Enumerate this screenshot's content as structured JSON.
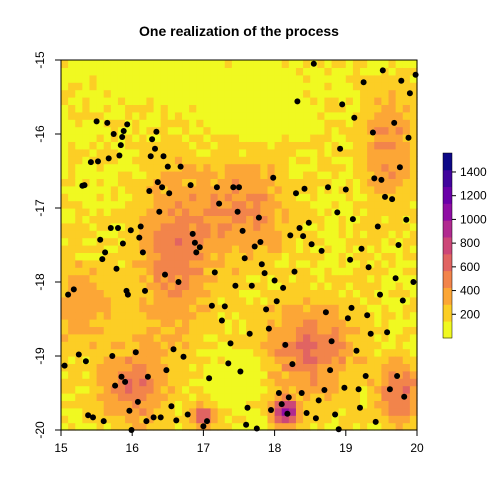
{
  "chart_data": {
    "type": "heatmap",
    "title": "One realization of the process",
    "xlabel": "",
    "ylabel": "",
    "xlim": [
      15,
      20
    ],
    "ylim": [
      -20,
      -15
    ],
    "grid_cells": [
      50,
      50
    ],
    "x_ticks": [
      {
        "value": 15,
        "label": "15"
      },
      {
        "value": 16,
        "label": "16"
      },
      {
        "value": 17,
        "label": "17"
      },
      {
        "value": 18,
        "label": "18"
      },
      {
        "value": 19,
        "label": "19"
      },
      {
        "value": 20,
        "label": "20"
      }
    ],
    "y_ticks": [
      {
        "value": -15,
        "label": "-15"
      },
      {
        "value": -16,
        "label": "-16"
      },
      {
        "value": -17,
        "label": "-17"
      },
      {
        "value": -18,
        "label": "-18"
      },
      {
        "value": -19,
        "label": "-19"
      },
      {
        "value": -20,
        "label": "-20"
      }
    ],
    "legend": {
      "placement": "right",
      "range": [
        0,
        1560
      ],
      "ticks": [
        {
          "value": 200,
          "label": "200"
        },
        {
          "value": 400,
          "label": "400"
        },
        {
          "value": 600,
          "label": "600"
        },
        {
          "value": 800,
          "label": "800"
        },
        {
          "value": 1000,
          "label": "1000"
        },
        {
          "value": 1200,
          "label": "1200"
        },
        {
          "value": 1400,
          "label": "1400"
        }
      ],
      "colors": [
        "#f0f921",
        "#fcce25",
        "#fca636",
        "#f2844b",
        "#e16462",
        "#cc4778",
        "#b12a90",
        "#8f0da4",
        "#6a00a8",
        "#41049d",
        "#0d0887"
      ]
    },
    "point_color": "#000000",
    "points": [
      [
        15.05,
        -19.13
      ],
      [
        15.1,
        -18.17
      ],
      [
        15.18,
        -18.1
      ],
      [
        15.25,
        -18.98
      ],
      [
        15.3,
        -16.7
      ],
      [
        15.33,
        -16.69
      ],
      [
        15.35,
        -19.07
      ],
      [
        15.38,
        -19.8
      ],
      [
        15.42,
        -16.38
      ],
      [
        15.45,
        -19.83
      ],
      [
        15.5,
        -15.83
      ],
      [
        15.52,
        -16.37
      ],
      [
        15.55,
        -17.43
      ],
      [
        15.58,
        -17.69
      ],
      [
        15.6,
        -19.88
      ],
      [
        15.62,
        -17.6
      ],
      [
        15.65,
        -15.85
      ],
      [
        15.67,
        -16.33
      ],
      [
        15.7,
        -17.27
      ],
      [
        15.72,
        -19.0
      ],
      [
        15.74,
        -16.0
      ],
      [
        15.76,
        -19.4
      ],
      [
        15.78,
        -17.82
      ],
      [
        15.8,
        -17.27
      ],
      [
        15.82,
        -16.29
      ],
      [
        15.84,
        -16.15
      ],
      [
        15.85,
        -19.28
      ],
      [
        15.86,
        -16.04
      ],
      [
        15.87,
        -17.48
      ],
      [
        15.88,
        -15.96
      ],
      [
        15.9,
        -19.35
      ],
      [
        15.92,
        -18.12
      ],
      [
        15.93,
        -15.87
      ],
      [
        15.94,
        -18.17
      ],
      [
        15.96,
        -19.74
      ],
      [
        15.98,
        -17.3
      ],
      [
        15.99,
        -20.0
      ],
      [
        16.05,
        -18.95
      ],
      [
        16.08,
        -19.62
      ],
      [
        16.1,
        -17.4
      ],
      [
        16.12,
        -17.25
      ],
      [
        16.15,
        -17.6
      ],
      [
        16.18,
        -18.12
      ],
      [
        16.2,
        -19.88
      ],
      [
        16.22,
        -19.28
      ],
      [
        16.24,
        -16.77
      ],
      [
        16.26,
        -16.3
      ],
      [
        16.28,
        -16.07
      ],
      [
        16.3,
        -19.83
      ],
      [
        16.32,
        -16.2
      ],
      [
        16.34,
        -15.97
      ],
      [
        16.36,
        -16.65
      ],
      [
        16.38,
        -17.05
      ],
      [
        16.4,
        -19.83
      ],
      [
        16.42,
        -16.72
      ],
      [
        16.44,
        -16.3
      ],
      [
        16.46,
        -17.9
      ],
      [
        16.48,
        -19.19
      ],
      [
        16.5,
        -16.44
      ],
      [
        16.52,
        -16.8
      ],
      [
        16.55,
        -19.68
      ],
      [
        16.58,
        -18.91
      ],
      [
        16.62,
        -19.87
      ],
      [
        16.65,
        -18.0
      ],
      [
        16.68,
        -16.44
      ],
      [
        16.72,
        -19.01
      ],
      [
        16.78,
        -19.79
      ],
      [
        16.82,
        -16.69
      ],
      [
        16.85,
        -17.35
      ],
      [
        16.88,
        -17.47
      ],
      [
        16.9,
        -17.6
      ],
      [
        16.95,
        -17.53
      ],
      [
        17.0,
        -19.95
      ],
      [
        17.05,
        -19.88
      ],
      [
        17.08,
        -19.3
      ],
      [
        17.12,
        -18.32
      ],
      [
        17.16,
        -17.87
      ],
      [
        17.19,
        -16.72
      ],
      [
        17.22,
        -16.94
      ],
      [
        17.26,
        -18.52
      ],
      [
        17.3,
        -18.33
      ],
      [
        17.35,
        -19.1
      ],
      [
        17.38,
        -18.83
      ],
      [
        17.42,
        -16.72
      ],
      [
        17.45,
        -18.05
      ],
      [
        17.48,
        -17.05
      ],
      [
        17.5,
        -16.72
      ],
      [
        17.52,
        -19.21
      ],
      [
        17.55,
        -17.31
      ],
      [
        17.58,
        -17.68
      ],
      [
        17.6,
        -19.93
      ],
      [
        17.62,
        -19.7
      ],
      [
        17.65,
        -18.7
      ],
      [
        17.68,
        -18.05
      ],
      [
        17.72,
        -17.52
      ],
      [
        17.75,
        -19.98
      ],
      [
        17.78,
        -17.13
      ],
      [
        17.8,
        -17.46
      ],
      [
        17.82,
        -17.76
      ],
      [
        17.86,
        -17.88
      ],
      [
        17.88,
        -18.37
      ],
      [
        17.92,
        -18.63
      ],
      [
        17.95,
        -19.73
      ],
      [
        17.98,
        -16.59
      ],
      [
        18.0,
        -17.98
      ],
      [
        18.03,
        -18.26
      ],
      [
        18.06,
        -19.5
      ],
      [
        18.1,
        -19.65
      ],
      [
        18.12,
        -18.08
      ],
      [
        18.15,
        -18.85
      ],
      [
        18.18,
        -19.78
      ],
      [
        18.2,
        -19.56
      ],
      [
        18.22,
        -17.37
      ],
      [
        18.25,
        -19.11
      ],
      [
        18.28,
        -17.86
      ],
      [
        18.3,
        -16.8
      ],
      [
        18.32,
        -15.56
      ],
      [
        18.35,
        -17.27
      ],
      [
        18.38,
        -19.5
      ],
      [
        18.4,
        -17.38
      ],
      [
        18.42,
        -16.74
      ],
      [
        18.45,
        -19.77
      ],
      [
        18.48,
        -17.2
      ],
      [
        18.52,
        -17.49
      ],
      [
        18.55,
        -15.05
      ],
      [
        18.58,
        -19.84
      ],
      [
        18.62,
        -19.6
      ],
      [
        18.66,
        -17.58
      ],
      [
        18.7,
        -19.46
      ],
      [
        18.72,
        -18.41
      ],
      [
        18.75,
        -16.72
      ],
      [
        18.78,
        -19.19
      ],
      [
        18.8,
        -18.8
      ],
      [
        18.85,
        -19.79
      ],
      [
        18.88,
        -17.06
      ],
      [
        18.9,
        -19.99
      ],
      [
        18.92,
        -16.2
      ],
      [
        18.95,
        -15.6
      ],
      [
        18.98,
        -19.43
      ],
      [
        19.0,
        -16.75
      ],
      [
        19.03,
        -18.49
      ],
      [
        19.06,
        -17.7
      ],
      [
        19.08,
        -18.35
      ],
      [
        19.1,
        -17.15
      ],
      [
        19.12,
        -15.78
      ],
      [
        19.15,
        -18.93
      ],
      [
        19.18,
        -19.45
      ],
      [
        19.2,
        -19.7
      ],
      [
        19.22,
        -17.55
      ],
      [
        19.25,
        -15.3
      ],
      [
        19.28,
        -19.27
      ],
      [
        19.3,
        -18.45
      ],
      [
        19.32,
        -17.8
      ],
      [
        19.35,
        -18.7
      ],
      [
        19.38,
        -15.98
      ],
      [
        19.4,
        -16.6
      ],
      [
        19.42,
        -19.89
      ],
      [
        19.45,
        -17.25
      ],
      [
        19.48,
        -18.17
      ],
      [
        19.5,
        -16.62
      ],
      [
        19.52,
        -15.14
      ],
      [
        19.55,
        -16.85
      ],
      [
        19.58,
        -18.68
      ],
      [
        19.62,
        -19.45
      ],
      [
        19.65,
        -16.88
      ],
      [
        19.68,
        -15.85
      ],
      [
        19.7,
        -17.95
      ],
      [
        19.72,
        -19.27
      ],
      [
        19.74,
        -17.5
      ],
      [
        19.76,
        -16.45
      ],
      [
        19.78,
        -15.28
      ],
      [
        19.8,
        -18.25
      ],
      [
        19.82,
        -19.55
      ],
      [
        19.85,
        -17.16
      ],
      [
        19.88,
        -16.05
      ],
      [
        19.9,
        -15.45
      ],
      [
        19.95,
        -18.0
      ],
      [
        19.98,
        -15.2
      ]
    ]
  }
}
